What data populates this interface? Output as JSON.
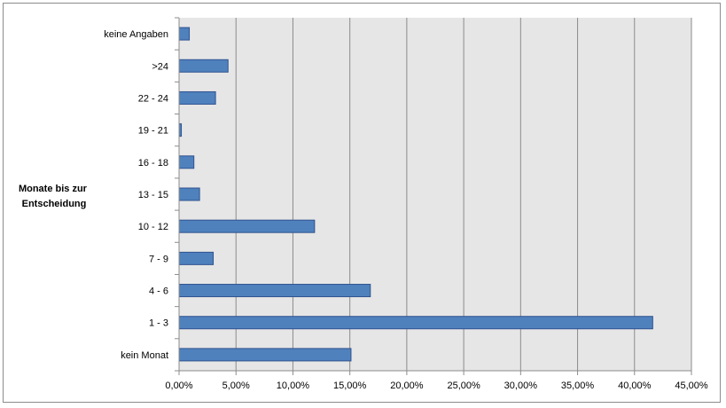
{
  "chart_data": {
    "type": "bar",
    "orientation": "horizontal",
    "title": "",
    "ylabel": "Monate bis zur Entscheidung",
    "ylabel_lines": [
      "Monate bis zur",
      "Entscheidung"
    ],
    "xlabel": "",
    "categories": [
      "kein Monat",
      "1 - 3",
      "4 - 6",
      "7 - 9",
      "10 - 12",
      "13 - 15",
      "16 - 18",
      "19 - 21",
      "22 - 24",
      ">24",
      "keine Angaben"
    ],
    "values": [
      15.1,
      41.6,
      16.8,
      3.0,
      11.9,
      1.8,
      1.3,
      0.2,
      3.2,
      4.3,
      0.9
    ],
    "x_ticks": [
      "0,00%",
      "5,00%",
      "10,00%",
      "15,00%",
      "20,00%",
      "25,00%",
      "30,00%",
      "35,00%",
      "40,00%",
      "45,00%"
    ],
    "xlim": [
      0,
      45
    ],
    "x_unit": "%",
    "grid": "vertical",
    "legend": "none",
    "colors": {
      "bar_fill": "#4f81bd",
      "bar_stroke": "#2f528f",
      "plot_background": "#e6e6e6",
      "gridline": "#8c8c8c",
      "axis": "#8c8c8c",
      "frame": "#8c8c8c"
    }
  }
}
